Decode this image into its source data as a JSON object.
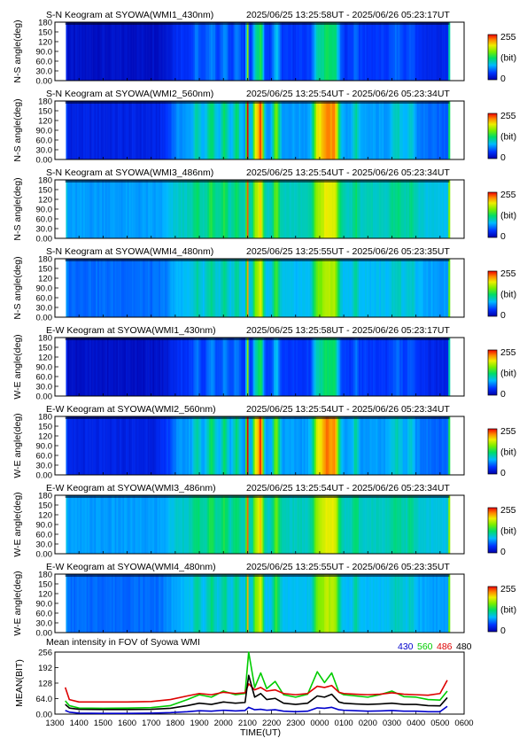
{
  "keograms": [
    {
      "title": "S-N Keogram at SYOWA(WMI1_430nm)",
      "time_range": "2025/06/25 13:25:58UT - 2025/06/26 05:23:17UT",
      "ylabel": "N-S angle(deg)",
      "wavelength": "430",
      "base_level": 0.05,
      "intensity_scale": 0.55
    },
    {
      "title": "S-N Keogram at SYOWA(WMI2_560nm)",
      "time_range": "2025/06/25 13:25:54UT - 2025/06/26 05:23:34UT",
      "ylabel": "N-S angle(deg)",
      "wavelength": "560",
      "base_level": 0.1,
      "intensity_scale": 1.0
    },
    {
      "title": "S-N Keogram at SYOWA(WMI3_486nm)",
      "time_range": "2025/06/25 13:25:54UT - 2025/06/26 05:23:34UT",
      "ylabel": "N-S angle(deg)",
      "wavelength": "486",
      "base_level": 0.28,
      "intensity_scale": 0.6
    },
    {
      "title": "S-N Keogram at SYOWA(WMI4_480nm)",
      "time_range": "2025/06/25 13:25:55UT - 2025/06/26 05:23:35UT",
      "ylabel": "N-S angle(deg)",
      "wavelength": "480",
      "base_level": 0.22,
      "intensity_scale": 0.6
    },
    {
      "title": "E-W Keogram at SYOWA(WMI1_430nm)",
      "time_range": "2025/06/25 13:25:58UT - 2025/06/26 05:23:17UT",
      "ylabel": "W-E angle(deg)",
      "wavelength": "430",
      "base_level": 0.05,
      "intensity_scale": 0.55
    },
    {
      "title": "E-W Keogram at SYOWA(WMI2_560nm)",
      "time_range": "2025/06/25 13:25:54UT - 2025/06/26 05:23:34UT",
      "ylabel": "W-E angle(deg)",
      "wavelength": "560",
      "base_level": 0.1,
      "intensity_scale": 1.0
    },
    {
      "title": "E-W Keogram at SYOWA(WMI3_486nm)",
      "time_range": "2025/06/25 13:25:54UT - 2025/06/26 05:23:34UT",
      "ylabel": "W-E angle(deg)",
      "wavelength": "486",
      "base_level": 0.28,
      "intensity_scale": 0.6
    },
    {
      "title": "E-W Keogram at SYOWA(WMI4_480nm)",
      "time_range": "2025/06/25 13:25:55UT - 2025/06/26 05:23:35UT",
      "ylabel": "W-E angle(deg)",
      "wavelength": "480",
      "base_level": 0.22,
      "intensity_scale": 0.6
    }
  ],
  "keogram_yticks": [
    "180",
    "150",
    "120",
    "90.0",
    "60.0",
    "30.0",
    "0.00"
  ],
  "colorbar": {
    "max_label": "255",
    "unit_label": "(bit)",
    "min_label": "0"
  },
  "mean_plot": {
    "title": "Mean intensity in FOV of Syowa WMI",
    "ylabel": "MEAN(BIT)",
    "xlabel": "TIME(UT)",
    "yticks": [
      "256",
      "192",
      "128",
      "64.0",
      "0.00"
    ],
    "legend": [
      {
        "label": "430",
        "color": "#0000cc"
      },
      {
        "label": "560",
        "color": "#00cc00"
      },
      {
        "label": "486",
        "color": "#dd0000"
      },
      {
        "label": "480",
        "color": "#000000"
      }
    ]
  },
  "x_axis": {
    "tick_labels": [
      "1300",
      "1400",
      "1500",
      "1600",
      "1700",
      "1800",
      "1900",
      "2000",
      "2100",
      "2200",
      "2300",
      "0000",
      "0100",
      "0200",
      "0300",
      "0400",
      "0500",
      "0600"
    ],
    "start_hour": 13,
    "end_hour": 30
  },
  "chart_data": {
    "type": "line",
    "title": "Mean intensity in FOV of Syowa WMI",
    "xlabel": "TIME(UT)",
    "ylabel": "MEAN(BIT)",
    "x": [
      13.43,
      13.6,
      14.0,
      15.0,
      16.0,
      17.0,
      17.8,
      18.5,
      19.0,
      19.5,
      20.0,
      20.5,
      20.9,
      21.05,
      21.3,
      21.55,
      21.8,
      22.15,
      22.5,
      23.0,
      23.5,
      23.9,
      24.2,
      24.5,
      24.8,
      25.0,
      25.5,
      26.0,
      26.5,
      27.0,
      27.5,
      28.0,
      28.5,
      29.0,
      29.3
    ],
    "series": [
      {
        "name": "430",
        "color": "#0000cc",
        "values": [
          15,
          8,
          4,
          3,
          3,
          4,
          6,
          10,
          14,
          12,
          16,
          13,
          15,
          28,
          18,
          20,
          16,
          18,
          12,
          10,
          12,
          26,
          24,
          28,
          18,
          16,
          14,
          12,
          13,
          15,
          12,
          12,
          10,
          10,
          32
        ]
      },
      {
        "name": "560",
        "color": "#00cc00",
        "values": [
          55,
          35,
          25,
          24,
          25,
          27,
          35,
          60,
          80,
          70,
          95,
          80,
          85,
          260,
          110,
          170,
          105,
          135,
          80,
          70,
          82,
          175,
          130,
          170,
          90,
          80,
          75,
          70,
          80,
          95,
          72,
          70,
          60,
          58,
          95
        ]
      },
      {
        "name": "486",
        "color": "#dd0000",
        "values": [
          110,
          60,
          50,
          50,
          50,
          52,
          60,
          75,
          85,
          80,
          90,
          85,
          88,
          125,
          100,
          110,
          95,
          100,
          85,
          80,
          85,
          115,
          110,
          118,
          90,
          85,
          82,
          80,
          82,
          88,
          82,
          80,
          78,
          85,
          140
        ]
      },
      {
        "name": "480",
        "color": "#000000",
        "values": [
          40,
          25,
          20,
          19,
          19,
          20,
          24,
          35,
          45,
          40,
          50,
          45,
          48,
          160,
          70,
          85,
          60,
          65,
          45,
          40,
          45,
          75,
          70,
          82,
          50,
          45,
          42,
          40,
          42,
          45,
          40,
          40,
          35,
          34,
          68
        ]
      }
    ],
    "xlim": [
      13,
      30
    ],
    "ylim": [
      0,
      256
    ],
    "grid": false,
    "legend_position": "top-right"
  },
  "keogram_chart_data": {
    "type": "heatmap",
    "x_unit": "hour UT",
    "y_range_deg": [
      0,
      180
    ],
    "colorbar_range": [
      0,
      255
    ],
    "coverage_hours": [
      13.43,
      29.39
    ],
    "brightness_onset_hour": 17.8,
    "auroral_bands": [
      {
        "center": 18.9,
        "width": 0.15,
        "amp": 0.15
      },
      {
        "center": 19.5,
        "width": 0.2,
        "amp": 0.2
      },
      {
        "center": 20.05,
        "width": 0.15,
        "amp": 0.2
      },
      {
        "center": 20.55,
        "width": 0.15,
        "amp": 0.18
      },
      {
        "center": 21.0,
        "width": 0.05,
        "amp": 0.9
      },
      {
        "center": 21.35,
        "width": 0.12,
        "amp": 0.45
      },
      {
        "center": 21.55,
        "width": 0.12,
        "amp": 0.65
      },
      {
        "center": 22.2,
        "width": 0.14,
        "amp": 0.35
      },
      {
        "center": 23.9,
        "width": 0.2,
        "amp": 0.35
      },
      {
        "center": 24.3,
        "width": 0.3,
        "amp": 0.6
      },
      {
        "center": 24.65,
        "width": 0.18,
        "amp": 0.4
      },
      {
        "center": 25.5,
        "width": 0.12,
        "amp": 0.15
      },
      {
        "center": 27.2,
        "width": 0.25,
        "amp": 0.12
      },
      {
        "center": 27.8,
        "width": 0.15,
        "amp": 0.12
      }
    ]
  }
}
